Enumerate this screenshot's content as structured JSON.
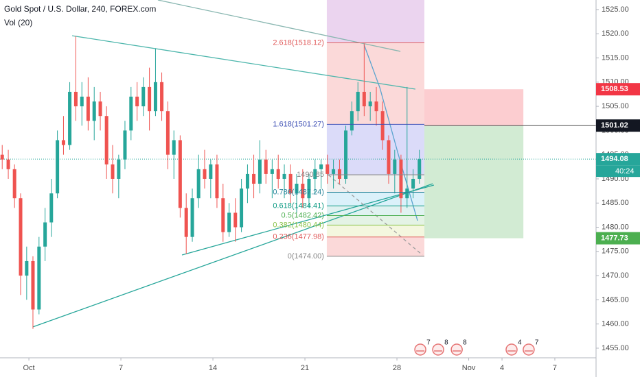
{
  "chart_data": {
    "type": "candlestick",
    "title": "Gold Spot / U.S. Dollar, 240, FOREX.com",
    "subtitle": "Vol (20)",
    "up_color": "#26a69a",
    "down_color": "#ef5350",
    "xlim": [
      -1.57,
      30.82
    ],
    "ylim": [
      1453.01,
      1526.98
    ],
    "xticks": [
      {
        "value": 0,
        "label": "Oct"
      },
      {
        "value": 5,
        "label": "7"
      },
      {
        "value": 10,
        "label": "14"
      },
      {
        "value": 15,
        "label": "21"
      },
      {
        "value": 20,
        "label": "28"
      },
      {
        "value": 23.9,
        "label": "Nov"
      },
      {
        "value": 25.71,
        "label": "4"
      },
      {
        "value": 28.58,
        "label": "7"
      }
    ],
    "yticks": [
      {
        "value": 1525,
        "label": "1525.00"
      },
      {
        "value": 1520,
        "label": "1520.00"
      },
      {
        "value": 1515,
        "label": "1515.00"
      },
      {
        "value": 1510,
        "label": "1510.00"
      },
      {
        "value": 1505,
        "label": "1505.00"
      },
      {
        "value": 1500,
        "label": "1500.00"
      },
      {
        "value": 1495,
        "label": "1495.00"
      },
      {
        "value": 1490,
        "label": "1490.00"
      },
      {
        "value": 1485,
        "label": "1485.00"
      },
      {
        "value": 1480,
        "label": "1480.00"
      },
      {
        "value": 1475,
        "label": "1475.00"
      },
      {
        "value": 1470,
        "label": "1470.00"
      },
      {
        "value": 1465,
        "label": "1465.00"
      },
      {
        "value": 1460,
        "label": "1460.00"
      },
      {
        "value": 1455,
        "label": "1455.00"
      }
    ],
    "x": [
      -1.45,
      -1.12,
      -0.78,
      -0.45,
      -0.12,
      0.22,
      0.55,
      0.88,
      1.22,
      1.55,
      1.88,
      2.22,
      2.55,
      2.88,
      3.22,
      3.55,
      3.88,
      4.22,
      4.55,
      4.88,
      5.22,
      5.55,
      5.88,
      6.22,
      6.55,
      6.88,
      7.22,
      7.55,
      7.88,
      8.22,
      8.55,
      8.88,
      9.22,
      9.55,
      9.88,
      10.22,
      10.55,
      10.88,
      11.22,
      11.55,
      11.88,
      12.22,
      12.55,
      12.88,
      13.22,
      13.55,
      13.88,
      14.22,
      14.55,
      14.88,
      15.22,
      15.55,
      15.88,
      16.22,
      16.55,
      16.88,
      17.22,
      17.55,
      17.88,
      18.22,
      18.55,
      18.88,
      19.22,
      19.55,
      19.88,
      20.22,
      20.55,
      20.88,
      21.22
    ],
    "open": [
      1495,
      1494,
      1492,
      1486,
      1470,
      1473,
      1463,
      1476,
      1481,
      1487,
      1498,
      1497,
      1508,
      1505,
      1507,
      1502,
      1506,
      1503,
      1493,
      1490,
      1494,
      1500,
      1507,
      1505,
      1509,
      1504,
      1510,
      1504,
      1495,
      1498,
      1484,
      1478,
      1486,
      1492,
      1490,
      1493,
      1486,
      1479,
      1483,
      1480,
      1488,
      1491,
      1489,
      1494,
      1491,
      1492,
      1490,
      1491,
      1487,
      1489,
      1486,
      1490,
      1492,
      1493,
      1491,
      1492,
      1490,
      1500,
      1504,
      1508,
      1505,
      1506,
      1504,
      1498,
      1491,
      1494,
      1486,
      1488,
      1490
    ],
    "high": [
      1497,
      1496,
      1493,
      1487,
      1476,
      1474,
      1478,
      1484,
      1490,
      1500,
      1503,
      1510,
      1519.5,
      1510,
      1511,
      1509,
      1508,
      1505,
      1497,
      1495,
      1502,
      1509,
      1510,
      1511,
      1513,
      1517,
      1512,
      1506,
      1500,
      1499,
      1487,
      1488,
      1495,
      1496,
      1494,
      1495,
      1489,
      1485,
      1486,
      1490,
      1493,
      1495,
      1498,
      1496,
      1494,
      1495,
      1493,
      1493,
      1491,
      1492,
      1491,
      1494,
      1494,
      1495,
      1494,
      1494,
      1501,
      1506,
      1510,
      1518,
      1508,
      1509,
      1506,
      1499,
      1496,
      1495,
      1509,
      1492,
      1496
    ],
    "low": [
      1492,
      1490,
      1484,
      1466,
      1465,
      1459,
      1462,
      1473,
      1478,
      1486,
      1495,
      1496,
      1502,
      1501,
      1500,
      1498,
      1500,
      1490,
      1487,
      1486,
      1492,
      1498,
      1502,
      1503,
      1500,
      1503,
      1502,
      1492,
      1490,
      1482,
      1474.5,
      1477,
      1484,
      1488,
      1486,
      1484,
      1477,
      1478,
      1477,
      1479,
      1485,
      1486,
      1487,
      1489,
      1486,
      1488,
      1486,
      1485,
      1483,
      1484,
      1484,
      1487,
      1488,
      1489,
      1488,
      1489,
      1489,
      1499,
      1502,
      1503,
      1502,
      1501,
      1496,
      1489,
      1487,
      1483,
      1484,
      1486,
      1489
    ],
    "close": [
      1494,
      1492,
      1486,
      1470,
      1473,
      1463,
      1476,
      1481,
      1487,
      1498,
      1497,
      1508,
      1505,
      1507,
      1502,
      1506,
      1503,
      1493,
      1490,
      1494,
      1500,
      1507,
      1505,
      1509,
      1504,
      1510,
      1504,
      1495,
      1498,
      1484,
      1478,
      1486,
      1492,
      1490,
      1493,
      1486,
      1479,
      1483,
      1480,
      1488,
      1491,
      1489,
      1494,
      1491,
      1492,
      1490,
      1491,
      1487,
      1489,
      1486,
      1490,
      1492,
      1493,
      1491,
      1492,
      1490,
      1500,
      1504,
      1508,
      1505,
      1506,
      1504,
      1498,
      1491,
      1494,
      1486,
      1488,
      1490,
      1494.08
    ],
    "fib_x": [
      16.19,
      21.49
    ],
    "fib_top_color": "rgba(156,39,176,0.2)",
    "fib_levels": [
      {
        "label": "2.618(1518.12)",
        "value": 1518.12,
        "color": "#e05a5a",
        "band": "rgba(239,83,80,0.22)"
      },
      {
        "label": "1.618(1501.27)",
        "value": 1501.27,
        "color": "#3f51b5",
        "band": "rgba(110,110,230,0.25)"
      },
      {
        "label": "1490.85",
        "value": 1490.85,
        "color": "#888888",
        "band": "rgba(150,150,150,0.15)"
      },
      {
        "label": "0.786(1487.24)",
        "value": 1487.24,
        "color": "#26849a",
        "band": "rgba(90,190,230,0.22)"
      },
      {
        "label": "0.618(1484.41)",
        "value": 1484.41,
        "color": "#089981",
        "band": "rgba(0,150,136,0.12)"
      },
      {
        "label": "0.5(1482.42)",
        "value": 1482.42,
        "color": "#4caf50",
        "band": "rgba(76,175,80,0.15)"
      },
      {
        "label": "0.382(1480.44)",
        "value": 1480.44,
        "color": "#8bc34a",
        "band": "rgba(205,220,110,0.22)"
      },
      {
        "label": "0.236(1477.98)",
        "value": 1477.98,
        "color": "#e05a5a",
        "band": "rgba(239,83,80,0.22)"
      },
      {
        "label": "0(1474.00)",
        "value": 1474.0,
        "color": "#888888",
        "band": "rgba(0,0,0,0)"
      }
    ],
    "position": {
      "x": [
        21.49,
        26.87
      ],
      "stop": 1508.53,
      "entry": 1501.02,
      "target": 1477.73
    },
    "last_price": 1494.08,
    "countdown": "40:24",
    "drawings": [
      {
        "points": [
          [
            7.01,
            1526.98
          ],
          [
            20.19,
            1516.36
          ]
        ],
        "color": "#88b6b0",
        "dash": false
      },
      {
        "points": [
          [
            2.35,
            1519.6
          ],
          [
            21.0,
            1508.56
          ]
        ],
        "color": "#4db6ac",
        "dash": false
      },
      {
        "points": [
          [
            8.32,
            1474.27
          ],
          [
            22.01,
            1488.72
          ]
        ],
        "color": "#26a69a",
        "dash": false
      },
      {
        "points": [
          [
            0.22,
            1459.4
          ],
          [
            21.94,
            1489.0
          ]
        ],
        "color": "#26a69a",
        "dash": false
      },
      {
        "points": [
          [
            16.27,
            1490.85
          ],
          [
            21.38,
            1474.27
          ]
        ],
        "color": "#9e9e9e",
        "dash": true
      },
      {
        "points": [
          [
            18.21,
            1517.77
          ],
          [
            19.07,
            1508.85
          ],
          [
            20.07,
            1495.1
          ],
          [
            21.12,
            1481.36
          ]
        ],
        "color": "#5ba4cf",
        "dash": false
      }
    ],
    "events": [
      {
        "x": 21.27,
        "count": 7
      },
      {
        "x": 22.24,
        "count": 8
      },
      {
        "x": 23.25,
        "count": 8
      },
      {
        "x": 26.23,
        "count": 4
      },
      {
        "x": 27.16,
        "count": 7
      }
    ]
  }
}
